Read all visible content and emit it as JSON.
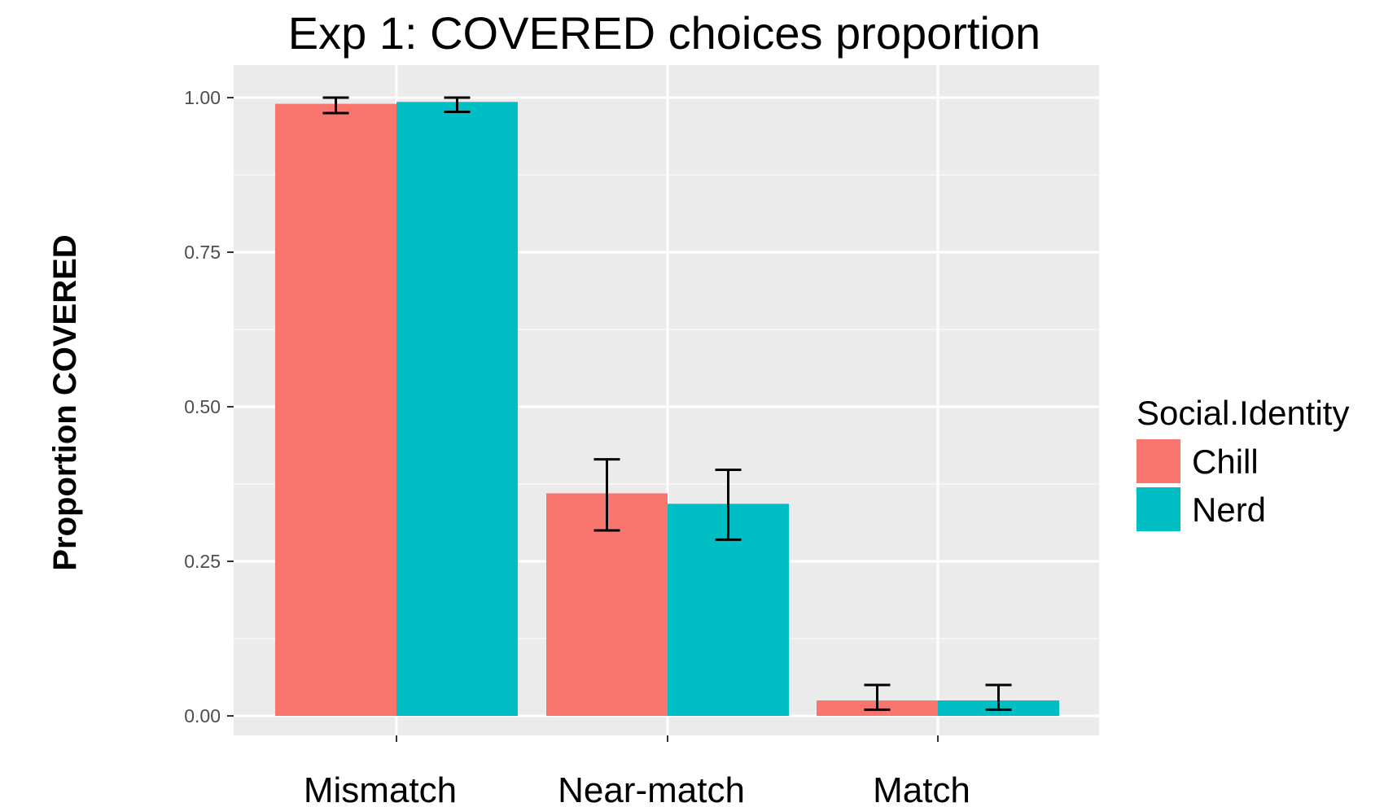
{
  "chart_data": {
    "type": "bar",
    "title": "Exp 1: COVERED choices proportion",
    "xlabel": "",
    "ylabel": "Proportion COVERED",
    "ylim": [
      0,
      1.05
    ],
    "yticks": [
      0.0,
      0.25,
      0.5,
      0.75,
      1.0
    ],
    "ytick_labels": [
      "0.00",
      "0.25",
      "0.50",
      "0.75",
      "1.00"
    ],
    "categories": [
      "Mismatch",
      "Near-match",
      "Match"
    ],
    "legend_title": "Social.Identity",
    "legend_position": "right",
    "grid": true,
    "series": [
      {
        "name": "Chill",
        "color": "#F8766D",
        "values": [
          0.99,
          0.36,
          0.025
        ],
        "error_low": [
          0.975,
          0.3,
          0.01
        ],
        "error_high": [
          1.0,
          0.415,
          0.05
        ]
      },
      {
        "name": "Nerd",
        "color": "#00BFC4",
        "values": [
          0.993,
          0.343,
          0.025
        ],
        "error_low": [
          0.977,
          0.285,
          0.01
        ],
        "error_high": [
          1.0,
          0.398,
          0.05
        ]
      }
    ]
  }
}
